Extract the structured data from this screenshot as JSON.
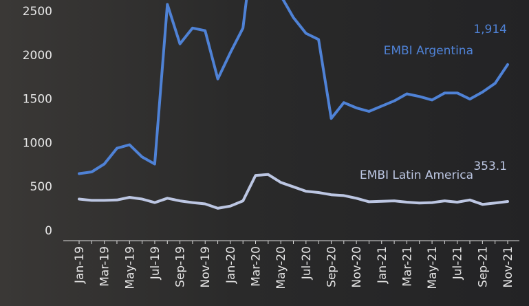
{
  "chart_data": {
    "type": "line",
    "categories": [
      "Jan-19",
      null,
      "Mar-19",
      null,
      "May-19",
      null,
      "Jul-19",
      null,
      "Sep-19",
      null,
      "Nov-19",
      null,
      "Jan-20",
      null,
      "Mar-20",
      null,
      "May-20",
      null,
      "Jul-20",
      null,
      "Sep-20",
      null,
      "Nov-20",
      null,
      "Jan-21",
      null,
      "Mar-21",
      null,
      "May-21",
      null,
      "Jul-21",
      null,
      "Sep-21",
      null,
      "Nov-21"
    ],
    "series": [
      {
        "name": "EMBI Argentina",
        "color": "#4f82d6",
        "values": [
          670,
          690,
          780,
          960,
          1000,
          860,
          780,
          2600,
          2150,
          2330,
          2300,
          1750,
          2050,
          2330,
          3500,
          3300,
          2700,
          2450,
          2270,
          2200,
          1300,
          1480,
          1420,
          1380,
          1440,
          1500,
          1580,
          1550,
          1510,
          1590,
          1590,
          1520,
          1600,
          1700,
          1914
        ],
        "value_labels": [
          null,
          null,
          null,
          null,
          null,
          null,
          null,
          null,
          null,
          null,
          null,
          null,
          null,
          null,
          null,
          null,
          null,
          null,
          null,
          null,
          null,
          null,
          null,
          null,
          null,
          null,
          null,
          null,
          null,
          null,
          null,
          null,
          null,
          null,
          "1,914"
        ]
      },
      {
        "name": "EMBI Latin America",
        "color": "#bcc6e2",
        "values": [
          380,
          365,
          365,
          370,
          400,
          380,
          340,
          390,
          360,
          340,
          325,
          275,
          300,
          360,
          650,
          660,
          570,
          520,
          470,
          455,
          430,
          420,
          390,
          350,
          355,
          360,
          345,
          335,
          340,
          360,
          345,
          370,
          320,
          335,
          353.1
        ],
        "value_labels": [
          null,
          null,
          null,
          null,
          null,
          null,
          null,
          null,
          null,
          null,
          null,
          null,
          null,
          null,
          null,
          null,
          null,
          null,
          null,
          null,
          null,
          null,
          null,
          null,
          null,
          null,
          null,
          null,
          null,
          null,
          null,
          null,
          null,
          null,
          "353.1"
        ]
      }
    ],
    "ylim": [
      0,
      2650
    ],
    "yticks": [
      0,
      500,
      1000,
      1500,
      2000,
      2500
    ],
    "grid": false
  }
}
